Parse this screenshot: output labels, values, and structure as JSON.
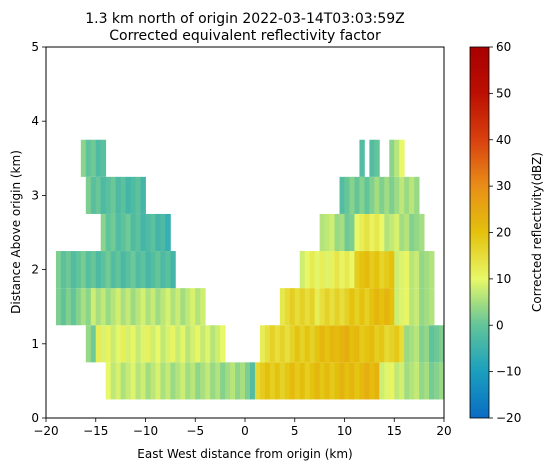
{
  "chart_data": {
    "type": "heatmap",
    "title_line1": "1.3 km north of origin 2022-03-14T03:03:59Z",
    "title_line2": "Corrected equivalent reflectivity factor",
    "xlabel": "East West distance from origin (km)",
    "ylabel": "Distance Above origin (km)",
    "xlim": [
      -20,
      20
    ],
    "ylim": [
      0,
      5
    ],
    "xticks": [
      -20,
      -15,
      -10,
      -5,
      0,
      5,
      10,
      15,
      20
    ],
    "yticks": [
      0,
      1,
      2,
      3,
      4,
      5
    ],
    "grid": false,
    "colorbar": {
      "label": "Corrected reflectivity(dBZ)",
      "range": [
        -20,
        60
      ],
      "ticks": [
        -20,
        -10,
        0,
        10,
        20,
        30,
        40,
        50,
        60
      ],
      "colormap": "HomeyerRainbow"
    },
    "layers": [
      {
        "z_range": [
          0.25,
          0.75
        ],
        "segments": [
          {
            "x_range": [
              -14,
              0.5
            ],
            "start_dbz": 12,
            "end_dbz": 8
          },
          {
            "x_range": [
              0.5,
              1.0
            ],
            "start_dbz": 0,
            "end_dbz": 0
          },
          {
            "x_range": [
              1.0,
              13.5
            ],
            "start_dbz": 18,
            "end_dbz": 22
          },
          {
            "x_range": [
              13.5,
              20
            ],
            "start_dbz": 10,
            "end_dbz": 2
          }
        ]
      },
      {
        "z_range": [
          0.75,
          1.25
        ],
        "segments": [
          {
            "x_range": [
              -16,
              -15
            ],
            "start_dbz": 6,
            "end_dbz": 6
          },
          {
            "x_range": [
              -15,
              -2
            ],
            "start_dbz": 14,
            "end_dbz": 12
          },
          {
            "x_range": [
              1.5,
              9
            ],
            "start_dbz": 14,
            "end_dbz": 21
          },
          {
            "x_range": [
              9,
              16
            ],
            "start_dbz": 23,
            "end_dbz": 16
          },
          {
            "x_range": [
              16,
              20
            ],
            "start_dbz": 6,
            "end_dbz": 0
          }
        ]
      },
      {
        "z_range": [
          1.25,
          1.75
        ],
        "segments": [
          {
            "x_range": [
              -19,
              -15.5
            ],
            "start_dbz": 4,
            "end_dbz": 8
          },
          {
            "x_range": [
              -15.5,
              -4
            ],
            "start_dbz": 10,
            "end_dbz": 11
          },
          {
            "x_range": [
              3.5,
              7
            ],
            "start_dbz": 15,
            "end_dbz": 17
          },
          {
            "x_range": [
              7,
              15
            ],
            "start_dbz": 14,
            "end_dbz": 22
          },
          {
            "x_range": [
              15,
              19
            ],
            "start_dbz": 10,
            "end_dbz": 4
          }
        ]
      },
      {
        "z_range": [
          1.75,
          2.25
        ],
        "segments": [
          {
            "x_range": [
              -19,
              -7
            ],
            "start_dbz": 4,
            "end_dbz": 2
          },
          {
            "x_range": [
              5.5,
              11
            ],
            "start_dbz": 10,
            "end_dbz": 12
          },
          {
            "x_range": [
              11,
              15
            ],
            "start_dbz": 20,
            "end_dbz": 18
          },
          {
            "x_range": [
              15,
              19
            ],
            "start_dbz": 10,
            "end_dbz": 4
          }
        ]
      },
      {
        "z_range": [
          2.25,
          2.75
        ],
        "segments": [
          {
            "x_range": [
              -14.5,
              -7.5
            ],
            "start_dbz": 5,
            "end_dbz": 0
          },
          {
            "x_range": [
              7.5,
              11
            ],
            "start_dbz": 8,
            "end_dbz": 2
          },
          {
            "x_range": [
              11,
              14
            ],
            "start_dbz": 12,
            "end_dbz": 12
          },
          {
            "x_range": [
              14,
              18
            ],
            "start_dbz": 8,
            "end_dbz": 3
          }
        ]
      },
      {
        "z_range": [
          2.75,
          3.25
        ],
        "segments": [
          {
            "x_range": [
              -16,
              -10
            ],
            "start_dbz": 4,
            "end_dbz": 1
          },
          {
            "x_range": [
              9.5,
              17.5
            ],
            "start_dbz": 0,
            "end_dbz": 6
          }
        ]
      },
      {
        "z_range": [
          3.25,
          3.75
        ],
        "segments": [
          {
            "x_range": [
              -16.5,
              -14
            ],
            "start_dbz": 5,
            "end_dbz": 3
          },
          {
            "x_range": [
              11.5,
              12
            ],
            "start_dbz": 0,
            "end_dbz": 0
          },
          {
            "x_range": [
              12.5,
              13.5
            ],
            "start_dbz": 0,
            "end_dbz": 0
          },
          {
            "x_range": [
              14.5,
              16
            ],
            "start_dbz": 5,
            "end_dbz": 8
          }
        ]
      }
    ]
  }
}
